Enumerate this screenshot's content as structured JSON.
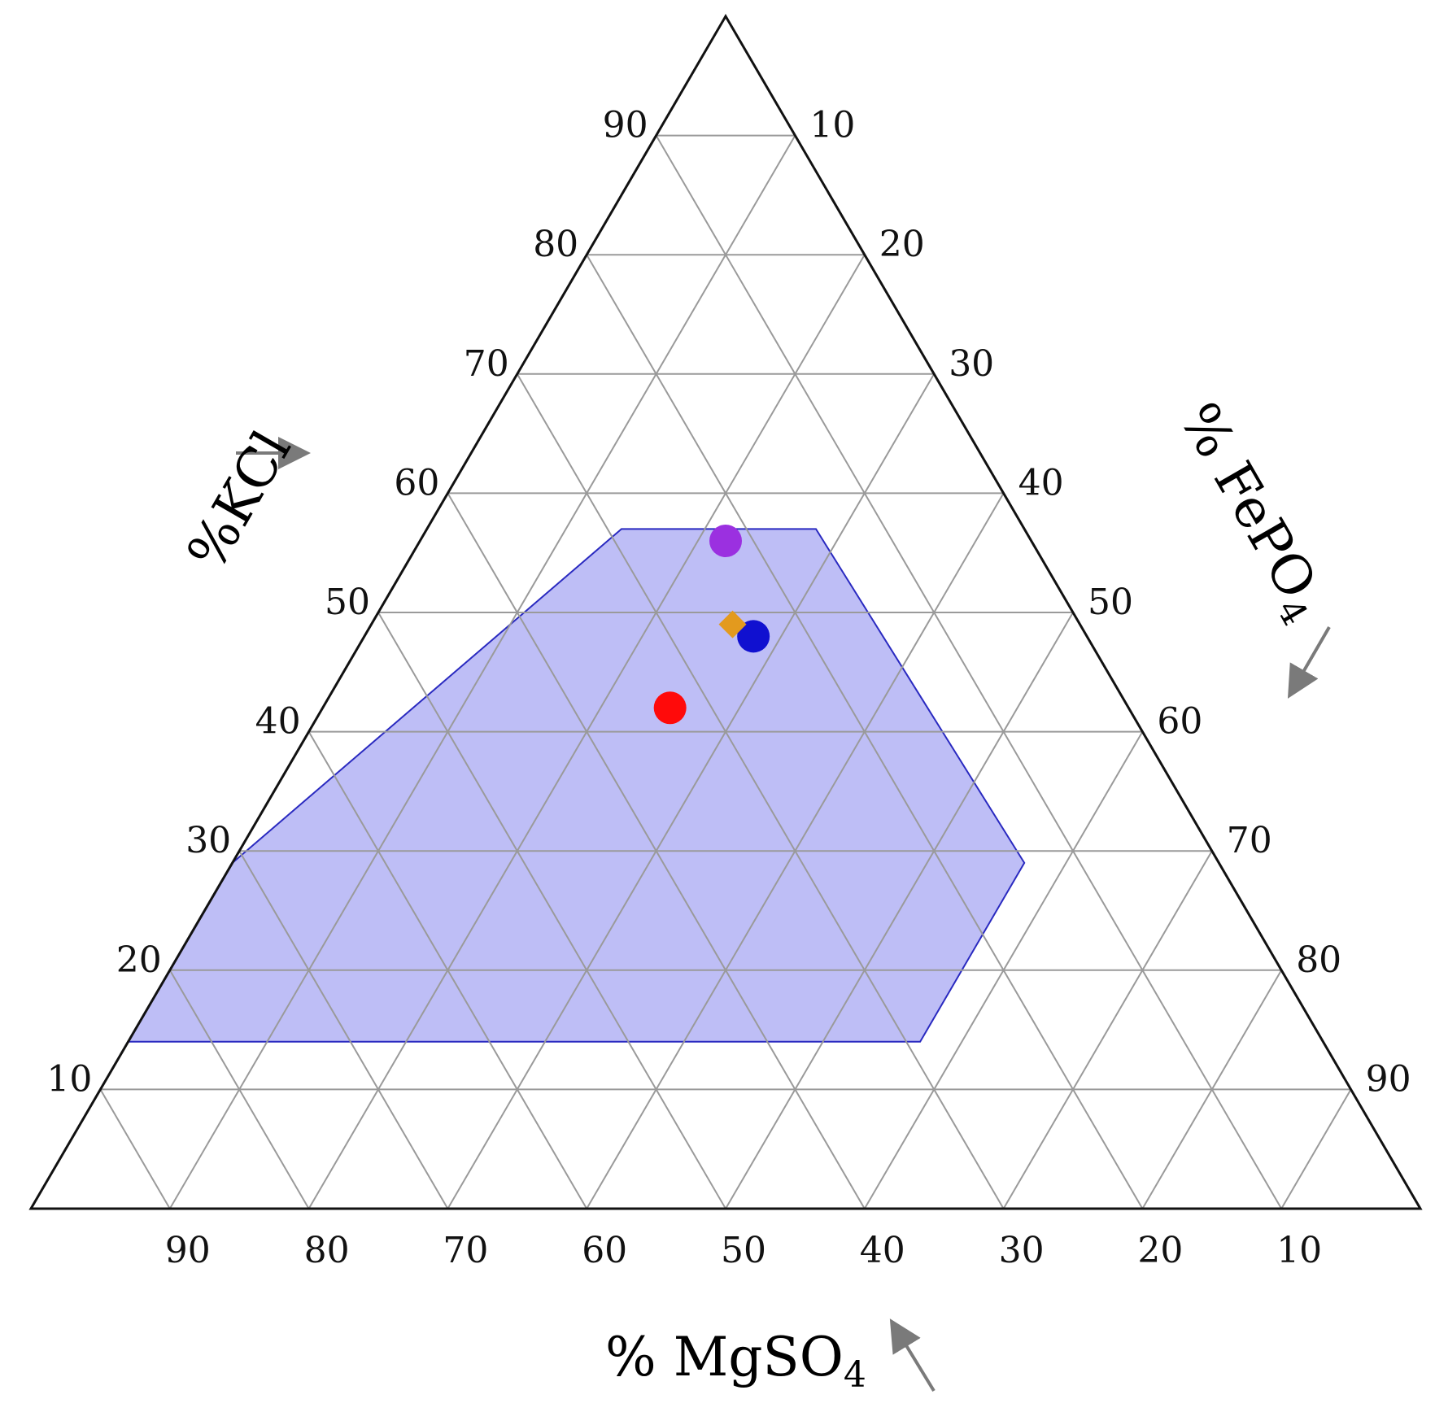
{
  "chart_data": {
    "type": "ternary-scatter",
    "axes": {
      "left": {
        "label_pre": "%KCl",
        "label_sub": ""
      },
      "right": {
        "label_pre": "% FePO",
        "label_sub": "4"
      },
      "bottom": {
        "label_pre": "% MgSO",
        "label_sub": "4"
      }
    },
    "ticks": {
      "left": [
        "90",
        "80",
        "70",
        "60",
        "50",
        "40",
        "30",
        "20",
        "10"
      ],
      "right": [
        "10",
        "20",
        "30",
        "40",
        "50",
        "60",
        "70",
        "80",
        "90"
      ],
      "bottom": [
        "90",
        "80",
        "70",
        "60",
        "50",
        "40",
        "30",
        "20",
        "10"
      ]
    },
    "grid": true,
    "region": {
      "color": "#b3b3f5",
      "stroke": "#2a2ac0",
      "vertices": [
        {
          "KCl": 57,
          "FePO4": 28,
          "MgSO4": 15
        },
        {
          "KCl": 57,
          "FePO4": 14,
          "MgSO4": 29
        },
        {
          "KCl": 29,
          "FePO4": 0,
          "MgSO4": 71
        },
        {
          "KCl": 14,
          "FePO4": 0,
          "MgSO4": 86
        },
        {
          "KCl": 14,
          "FePO4": 57,
          "MgSO4": 29
        },
        {
          "KCl": 29,
          "FePO4": 57,
          "MgSO4": 14
        }
      ]
    },
    "points": [
      {
        "KCl": 56,
        "FePO4": 22,
        "MgSO4": 22,
        "color": "#9b30e0",
        "shape": "circle"
      },
      {
        "KCl": 48,
        "FePO4": 28,
        "MgSO4": 24,
        "color": "#1010d0",
        "shape": "circle"
      },
      {
        "KCl": 49,
        "FePO4": 26,
        "MgSO4": 25,
        "color": "#e39a1e",
        "shape": "diamond"
      },
      {
        "KCl": 42,
        "FePO4": 25,
        "MgSO4": 33,
        "color": "#ff0a0a",
        "shape": "circle"
      }
    ]
  }
}
